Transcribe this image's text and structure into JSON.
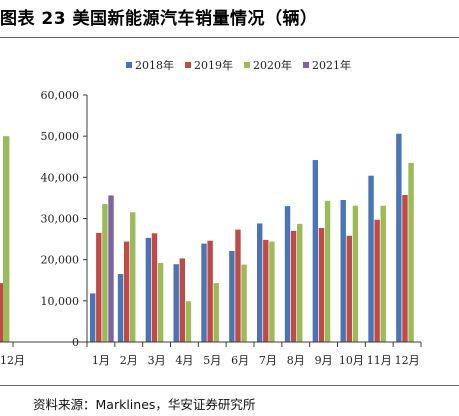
{
  "title": "图表 23  美国新能源汽车销量情况（辆）",
  "source": "资料来源：Marklines，华安证券研究所",
  "chart_data": {
    "type": "bar",
    "categories": [
      "1月",
      "2月",
      "3月",
      "4月",
      "5月",
      "6月",
      "7月",
      "8月",
      "9月",
      "10月",
      "11月",
      "12月"
    ],
    "series": [
      {
        "name": "2018年",
        "color": "#4a74b4",
        "values": [
          11800,
          16500,
          25300,
          18900,
          23900,
          22100,
          28800,
          33000,
          44200,
          34500,
          40400,
          50600
        ]
      },
      {
        "name": "2019年",
        "color": "#bf4a47",
        "values": [
          26500,
          24400,
          26400,
          20300,
          24600,
          27300,
          24800,
          27000,
          27700,
          25800,
          29700,
          35700
        ]
      },
      {
        "name": "2020年",
        "color": "#9bbb59",
        "values": [
          33500,
          31500,
          19200,
          9900,
          14300,
          18800,
          24400,
          28700,
          34300,
          33100,
          33100,
          43500
        ]
      },
      {
        "name": "2021年",
        "color": "#7f62a0",
        "values": [
          35600,
          null,
          null,
          null,
          null,
          null,
          null,
          null,
          null,
          null,
          null,
          null
        ]
      }
    ],
    "yticks": [
      "0",
      "10,000",
      "20,000",
      "30,000",
      "40,000",
      "50,000",
      "60,000"
    ],
    "ylim": [
      0,
      60000
    ],
    "grid": false,
    "legend": "top",
    "left_fragment": {
      "bars": [
        {
          "color": "#bf4a47",
          "value": 14300
        },
        {
          "color": "#9bbb59",
          "value": 50000
        }
      ],
      "tick_label": "12月"
    }
  }
}
